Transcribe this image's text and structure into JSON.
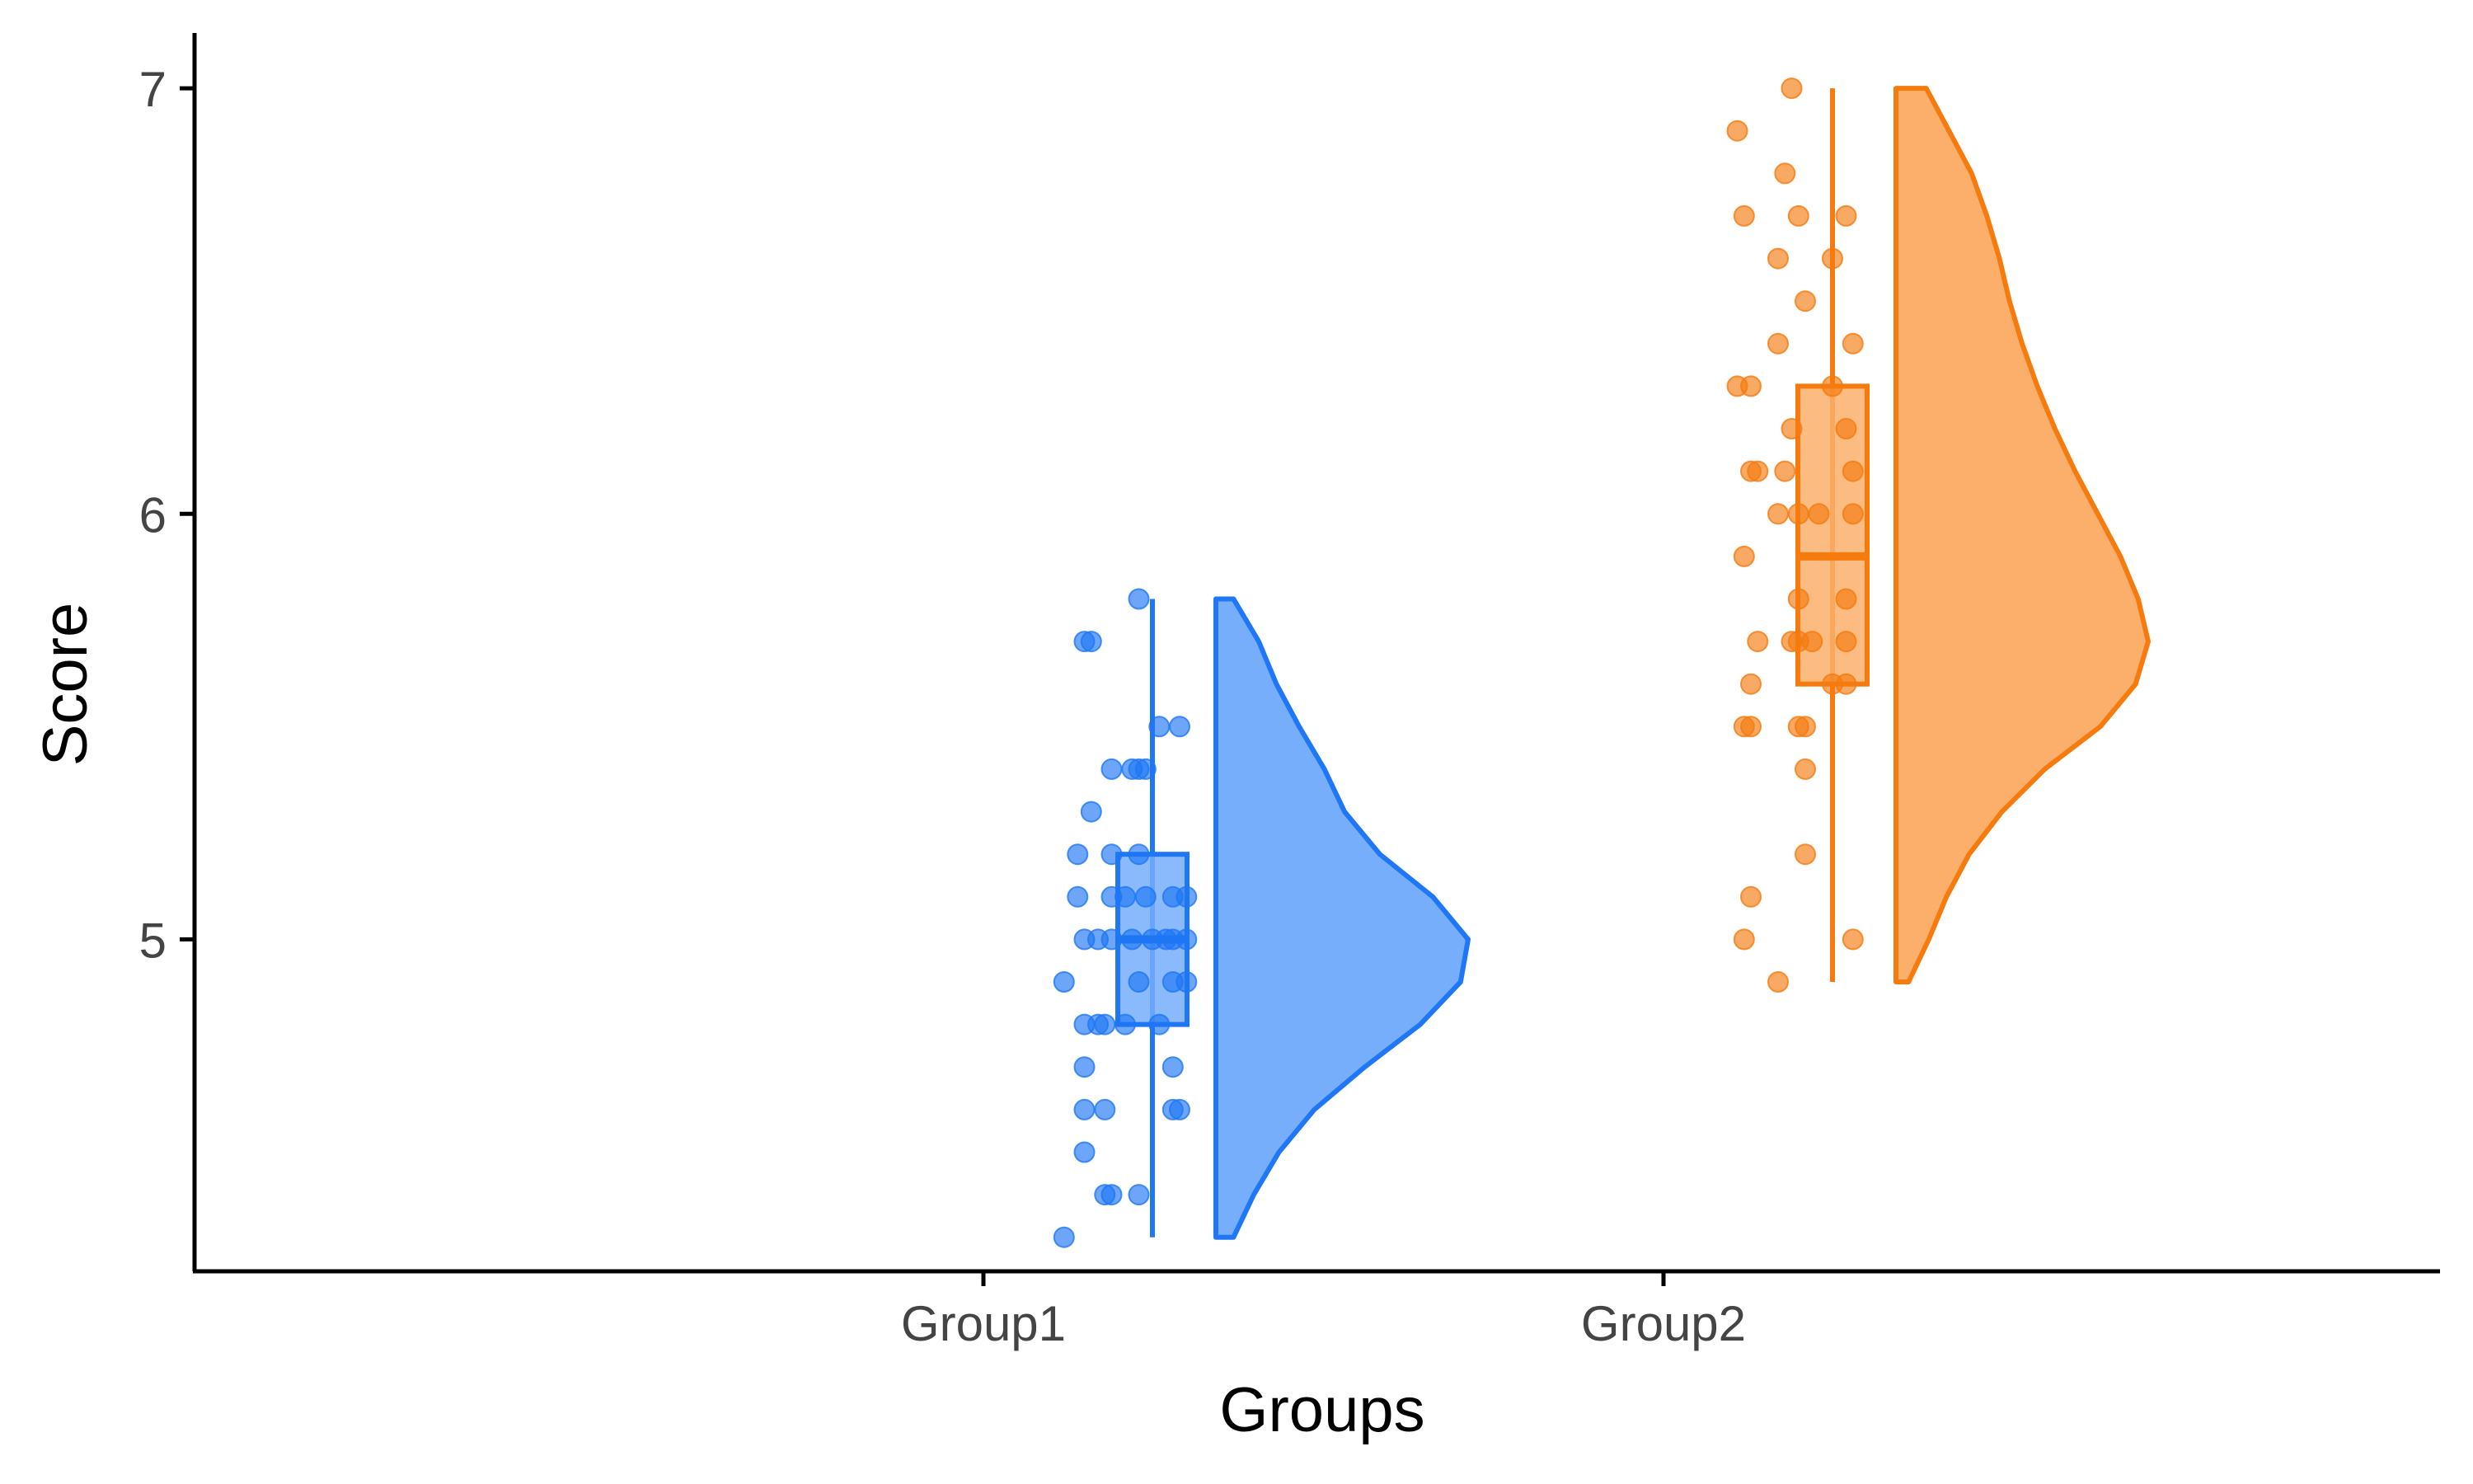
{
  "chart_data": {
    "type": "raincloud",
    "title": "",
    "xlabel": "Groups",
    "ylabel": "Score",
    "categories": [
      "Group1",
      "Group2"
    ],
    "ylim": [
      4.22,
      7.13
    ],
    "yticks": [
      5,
      6,
      7
    ],
    "grid": false,
    "legend": "none",
    "series": [
      {
        "name": "Group1",
        "color": "#1F77F5",
        "fill": "#77AEFB",
        "box": {
          "min": 4.3,
          "q1": 4.8,
          "median": 5.0,
          "q3": 5.2,
          "max": 5.8
        },
        "density": {
          "y": [
            4.3,
            4.4,
            4.5,
            4.6,
            4.7,
            4.8,
            4.9,
            5.0,
            5.1,
            5.2,
            5.3,
            5.4,
            5.5,
            5.6,
            5.7,
            5.8
          ],
          "rel": [
            0.07,
            0.15,
            0.25,
            0.39,
            0.59,
            0.81,
            0.97,
            1.0,
            0.86,
            0.65,
            0.51,
            0.43,
            0.33,
            0.24,
            0.17,
            0.07
          ]
        },
        "points": [
          {
            "x": -0.13,
            "y": 4.3
          },
          {
            "x": -0.07,
            "y": 4.4
          },
          {
            "x": -0.06,
            "y": 4.4
          },
          {
            "x": -0.02,
            "y": 4.4
          },
          {
            "x": -0.1,
            "y": 4.5
          },
          {
            "x": -0.1,
            "y": 4.6
          },
          {
            "x": -0.07,
            "y": 4.6
          },
          {
            "x": 0.03,
            "y": 4.6
          },
          {
            "x": 0.04,
            "y": 4.6
          },
          {
            "x": -0.1,
            "y": 4.7
          },
          {
            "x": 0.03,
            "y": 4.7
          },
          {
            "x": -0.1,
            "y": 4.8
          },
          {
            "x": -0.08,
            "y": 4.8
          },
          {
            "x": -0.07,
            "y": 4.8
          },
          {
            "x": -0.04,
            "y": 4.8
          },
          {
            "x": 0.01,
            "y": 4.8
          },
          {
            "x": -0.13,
            "y": 4.9
          },
          {
            "x": -0.02,
            "y": 4.9
          },
          {
            "x": 0.03,
            "y": 4.9
          },
          {
            "x": 0.05,
            "y": 4.9
          },
          {
            "x": -0.1,
            "y": 5.0
          },
          {
            "x": -0.08,
            "y": 5.0
          },
          {
            "x": -0.06,
            "y": 5.0
          },
          {
            "x": -0.03,
            "y": 5.0
          },
          {
            "x": 0.0,
            "y": 5.0
          },
          {
            "x": 0.02,
            "y": 5.0
          },
          {
            "x": 0.03,
            "y": 5.0
          },
          {
            "x": 0.05,
            "y": 5.0
          },
          {
            "x": -0.11,
            "y": 5.1
          },
          {
            "x": -0.06,
            "y": 5.1
          },
          {
            "x": -0.04,
            "y": 5.1
          },
          {
            "x": -0.01,
            "y": 5.1
          },
          {
            "x": 0.03,
            "y": 5.1
          },
          {
            "x": 0.05,
            "y": 5.1
          },
          {
            "x": -0.11,
            "y": 5.2
          },
          {
            "x": -0.06,
            "y": 5.2
          },
          {
            "x": -0.02,
            "y": 5.2
          },
          {
            "x": -0.09,
            "y": 5.3
          },
          {
            "x": -0.06,
            "y": 5.4
          },
          {
            "x": -0.03,
            "y": 5.4
          },
          {
            "x": -0.02,
            "y": 5.4
          },
          {
            "x": -0.01,
            "y": 5.4
          },
          {
            "x": 0.01,
            "y": 5.5
          },
          {
            "x": 0.04,
            "y": 5.5
          },
          {
            "x": -0.1,
            "y": 5.7
          },
          {
            "x": -0.09,
            "y": 5.7
          },
          {
            "x": -0.02,
            "y": 5.8
          }
        ]
      },
      {
        "name": "Group2",
        "color": "#F57B0F",
        "fill": "#FBAF6B",
        "box": {
          "min": 4.9,
          "q1": 5.6,
          "median": 5.9,
          "q3": 6.3,
          "max": 7.0
        },
        "density": {
          "y": [
            4.9,
            5.0,
            5.1,
            5.2,
            5.3,
            5.4,
            5.5,
            5.6,
            5.7,
            5.8,
            5.9,
            6.0,
            6.1,
            6.2,
            6.3,
            6.4,
            6.5,
            6.6,
            6.7,
            6.8,
            6.9,
            7.0
          ],
          "rel": [
            0.05,
            0.13,
            0.2,
            0.29,
            0.42,
            0.59,
            0.81,
            0.95,
            1.0,
            0.96,
            0.89,
            0.8,
            0.71,
            0.63,
            0.56,
            0.5,
            0.45,
            0.41,
            0.36,
            0.3,
            0.21,
            0.12
          ]
        },
        "points": [
          {
            "x": -0.08,
            "y": 4.9
          },
          {
            "x": -0.13,
            "y": 5.0
          },
          {
            "x": 0.03,
            "y": 5.0
          },
          {
            "x": -0.12,
            "y": 5.1
          },
          {
            "x": -0.04,
            "y": 5.2
          },
          {
            "x": -0.04,
            "y": 5.4
          },
          {
            "x": -0.13,
            "y": 5.5
          },
          {
            "x": -0.12,
            "y": 5.5
          },
          {
            "x": -0.05,
            "y": 5.5
          },
          {
            "x": -0.04,
            "y": 5.5
          },
          {
            "x": -0.12,
            "y": 5.6
          },
          {
            "x": 0.0,
            "y": 5.6
          },
          {
            "x": 0.02,
            "y": 5.6
          },
          {
            "x": -0.11,
            "y": 5.7
          },
          {
            "x": -0.06,
            "y": 5.7
          },
          {
            "x": -0.05,
            "y": 5.7
          },
          {
            "x": -0.03,
            "y": 5.7
          },
          {
            "x": 0.02,
            "y": 5.7
          },
          {
            "x": -0.05,
            "y": 5.8
          },
          {
            "x": 0.02,
            "y": 5.8
          },
          {
            "x": -0.13,
            "y": 5.9
          },
          {
            "x": -0.08,
            "y": 6.0
          },
          {
            "x": -0.05,
            "y": 6.0
          },
          {
            "x": -0.02,
            "y": 6.0
          },
          {
            "x": 0.03,
            "y": 6.0
          },
          {
            "x": -0.12,
            "y": 6.1
          },
          {
            "x": -0.11,
            "y": 6.1
          },
          {
            "x": -0.07,
            "y": 6.1
          },
          {
            "x": 0.03,
            "y": 6.1
          },
          {
            "x": -0.06,
            "y": 6.2
          },
          {
            "x": 0.02,
            "y": 6.2
          },
          {
            "x": -0.14,
            "y": 6.3
          },
          {
            "x": -0.12,
            "y": 6.3
          },
          {
            "x": 0.0,
            "y": 6.3
          },
          {
            "x": -0.08,
            "y": 6.4
          },
          {
            "x": 0.03,
            "y": 6.4
          },
          {
            "x": -0.04,
            "y": 6.5
          },
          {
            "x": -0.08,
            "y": 6.6
          },
          {
            "x": 0.0,
            "y": 6.6
          },
          {
            "x": -0.13,
            "y": 6.7
          },
          {
            "x": -0.05,
            "y": 6.7
          },
          {
            "x": 0.02,
            "y": 6.7
          },
          {
            "x": -0.07,
            "y": 6.8
          },
          {
            "x": -0.14,
            "y": 6.9
          },
          {
            "x": -0.06,
            "y": 7.0
          }
        ]
      }
    ]
  }
}
